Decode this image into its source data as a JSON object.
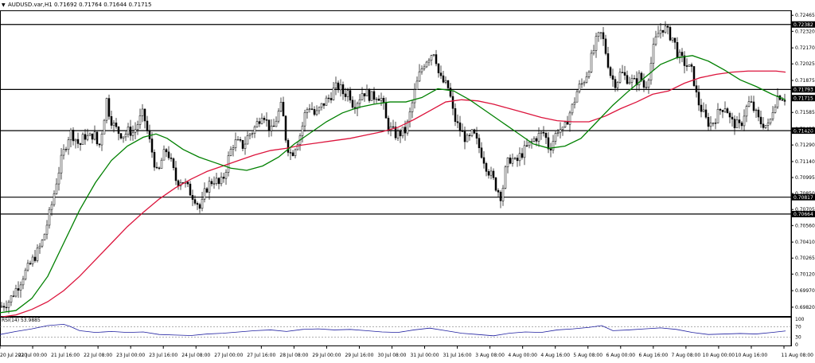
{
  "header": {
    "symbol_text": "AUDUSD.var,H1  0.71692 0.71764 0.71644 0.71715"
  },
  "rsi_label": "RSI(14) 53.9885",
  "chart_data": {
    "type": "candlestick",
    "symbol": "AUDUSD.var",
    "timeframe": "H1",
    "ohlc_header": {
      "open": 0.71692,
      "high": 0.71764,
      "low": 0.71644,
      "close": 0.71715
    },
    "y_range": [
      0.6974,
      0.7251
    ],
    "y_ticks": [
      "0.72465",
      "0.72320",
      "0.72170",
      "0.72025",
      "0.71875",
      "0.71585",
      "0.71435",
      "0.71290",
      "0.71140",
      "0.70995",
      "0.70850",
      "0.70705",
      "0.70560",
      "0.70410",
      "0.70265",
      "0.70120",
      "0.69970",
      "0.69820"
    ],
    "x_labels": [
      "20 Jul 2020",
      "21 Jul 00:00",
      "21 Jul 16:00",
      "22 Jul 08:00",
      "23 Jul 00:00",
      "23 Jul 16:00",
      "24 Jul 08:00",
      "27 Jul 00:00",
      "27 Jul 16:00",
      "28 Jul 08:00",
      "29 Jul 00:00",
      "29 Jul 16:00",
      "30 Jul 08:00",
      "31 Jul 00:00",
      "31 Jul 16:00",
      "3 Aug 08:00",
      "4 Aug 00:00",
      "4 Aug 16:00",
      "5 Aug 08:00",
      "6 Aug 00:00",
      "6 Aug 16:00",
      "7 Aug 08:00",
      "10 Aug 00:00",
      "10 Aug 16:00",
      "11 Aug 08:00"
    ],
    "horizontal_levels": [
      {
        "value": 0.72382,
        "label": "0.72382"
      },
      {
        "value": 0.71793,
        "label": "0.71793"
      },
      {
        "value": 0.7142,
        "label": "0.71420"
      },
      {
        "value": 0.70817,
        "label": "0.70817"
      },
      {
        "value": 0.70664,
        "label": "0.70664"
      }
    ],
    "current_price": {
      "value": 0.71715,
      "label": "0.71715"
    },
    "close_path": [
      [
        0,
        0.6982
      ],
      [
        6,
        0.6985
      ],
      [
        12,
        0.6988
      ],
      [
        18,
        0.6996
      ],
      [
        24,
        0.7003
      ],
      [
        30,
        0.7012
      ],
      [
        36,
        0.7018
      ],
      [
        42,
        0.7026
      ],
      [
        48,
        0.7033
      ],
      [
        54,
        0.7043
      ],
      [
        60,
        0.706
      ],
      [
        66,
        0.7078
      ],
      [
        72,
        0.71
      ],
      [
        78,
        0.7118
      ],
      [
        84,
        0.7132
      ],
      [
        88,
        0.7141
      ],
      [
        94,
        0.7136
      ],
      [
        100,
        0.7128
      ],
      [
        106,
        0.7138
      ],
      [
        112,
        0.7135
      ],
      [
        118,
        0.714
      ],
      [
        124,
        0.7125
      ],
      [
        130,
        0.715
      ],
      [
        134,
        0.717
      ],
      [
        138,
        0.7155
      ],
      [
        144,
        0.7145
      ],
      [
        150,
        0.714
      ],
      [
        156,
        0.7138
      ],
      [
        162,
        0.7142
      ],
      [
        168,
        0.714
      ],
      [
        174,
        0.715
      ],
      [
        180,
        0.7158
      ],
      [
        186,
        0.7138
      ],
      [
        192,
        0.712
      ],
      [
        198,
        0.71
      ],
      [
        204,
        0.7118
      ],
      [
        210,
        0.7125
      ],
      [
        216,
        0.711
      ],
      [
        222,
        0.7095
      ],
      [
        228,
        0.7098
      ],
      [
        234,
        0.7092
      ],
      [
        240,
        0.7085
      ],
      [
        246,
        0.708
      ],
      [
        252,
        0.707
      ],
      [
        258,
        0.7088
      ],
      [
        264,
        0.7095
      ],
      [
        270,
        0.7098
      ],
      [
        276,
        0.7092
      ],
      [
        282,
        0.7102
      ],
      [
        288,
        0.712
      ],
      [
        294,
        0.7132
      ],
      [
        300,
        0.713
      ],
      [
        306,
        0.7128
      ],
      [
        312,
        0.7138
      ],
      [
        318,
        0.7142
      ],
      [
        324,
        0.715
      ],
      [
        330,
        0.716
      ],
      [
        336,
        0.7148
      ],
      [
        342,
        0.714
      ],
      [
        348,
        0.7155
      ],
      [
        354,
        0.7165
      ],
      [
        360,
        0.713
      ],
      [
        366,
        0.712
      ],
      [
        372,
        0.713
      ],
      [
        378,
        0.714
      ],
      [
        384,
        0.716
      ],
      [
        390,
        0.7165
      ],
      [
        396,
        0.7155
      ],
      [
        402,
        0.7162
      ],
      [
        408,
        0.7168
      ],
      [
        414,
        0.7172
      ],
      [
        420,
        0.718
      ],
      [
        426,
        0.7182
      ],
      [
        432,
        0.7175
      ],
      [
        438,
        0.7178
      ],
      [
        444,
        0.7165
      ],
      [
        450,
        0.717
      ],
      [
        456,
        0.7178
      ],
      [
        462,
        0.7175
      ],
      [
        468,
        0.7172
      ],
      [
        474,
        0.7175
      ],
      [
        480,
        0.717
      ],
      [
        486,
        0.7148
      ],
      [
        492,
        0.7142
      ],
      [
        498,
        0.7138
      ],
      [
        504,
        0.714
      ],
      [
        510,
        0.7142
      ],
      [
        516,
        0.716
      ],
      [
        522,
        0.718
      ],
      [
        528,
        0.7195
      ],
      [
        534,
        0.7205
      ],
      [
        540,
        0.721
      ],
      [
        546,
        0.7215
      ],
      [
        552,
        0.719
      ],
      [
        558,
        0.7185
      ],
      [
        564,
        0.718
      ],
      [
        570,
        0.7155
      ],
      [
        576,
        0.7145
      ],
      [
        582,
        0.7138
      ],
      [
        588,
        0.7132
      ],
      [
        594,
        0.714
      ],
      [
        600,
        0.713
      ],
      [
        606,
        0.712
      ],
      [
        612,
        0.7108
      ],
      [
        618,
        0.71
      ],
      [
        624,
        0.709
      ],
      [
        630,
        0.7082
      ],
      [
        636,
        0.711
      ],
      [
        642,
        0.7118
      ],
      [
        648,
        0.7112
      ],
      [
        654,
        0.712
      ],
      [
        660,
        0.7125
      ],
      [
        666,
        0.713
      ],
      [
        672,
        0.7135
      ],
      [
        678,
        0.7138
      ],
      [
        684,
        0.714
      ],
      [
        690,
        0.7125
      ],
      [
        696,
        0.7135
      ],
      [
        702,
        0.7145
      ],
      [
        708,
        0.714
      ],
      [
        714,
        0.7155
      ],
      [
        720,
        0.7165
      ],
      [
        726,
        0.718
      ],
      [
        732,
        0.7185
      ],
      [
        738,
        0.7195
      ],
      [
        744,
        0.721
      ],
      [
        750,
        0.7225
      ],
      [
        756,
        0.723
      ],
      [
        762,
        0.721
      ],
      [
        768,
        0.719
      ],
      [
        774,
        0.7185
      ],
      [
        780,
        0.7195
      ],
      [
        786,
        0.719
      ],
      [
        792,
        0.7188
      ],
      [
        798,
        0.7185
      ],
      [
        804,
        0.7192
      ],
      [
        810,
        0.718
      ],
      [
        816,
        0.7195
      ],
      [
        822,
        0.722
      ],
      [
        828,
        0.7232
      ],
      [
        834,
        0.7236
      ],
      [
        840,
        0.723
      ],
      [
        846,
        0.7225
      ],
      [
        852,
        0.721
      ],
      [
        858,
        0.7205
      ],
      [
        864,
        0.72
      ],
      [
        870,
        0.7195
      ],
      [
        876,
        0.717
      ],
      [
        882,
        0.716
      ],
      [
        888,
        0.715
      ],
      [
        894,
        0.7148
      ],
      [
        900,
        0.7155
      ],
      [
        906,
        0.7162
      ],
      [
        912,
        0.7165
      ],
      [
        918,
        0.715
      ],
      [
        924,
        0.7148
      ],
      [
        930,
        0.7145
      ],
      [
        936,
        0.716
      ],
      [
        942,
        0.7168
      ],
      [
        948,
        0.716
      ],
      [
        954,
        0.715
      ],
      [
        960,
        0.7148
      ],
      [
        966,
        0.7145
      ],
      [
        972,
        0.7165
      ],
      [
        978,
        0.7175
      ],
      [
        984,
        0.7172
      ],
      [
        987,
        0.71715
      ]
    ],
    "ma_fast": {
      "color": "#008000",
      "points": [
        [
          0,
          0.6977
        ],
        [
          20,
          0.6979
        ],
        [
          40,
          0.699
        ],
        [
          60,
          0.701
        ],
        [
          80,
          0.704
        ],
        [
          100,
          0.707
        ],
        [
          120,
          0.7095
        ],
        [
          140,
          0.7115
        ],
        [
          160,
          0.7128
        ],
        [
          180,
          0.7136
        ],
        [
          196,
          0.7139
        ],
        [
          210,
          0.7135
        ],
        [
          230,
          0.7125
        ],
        [
          250,
          0.7118
        ],
        [
          270,
          0.7113
        ],
        [
          290,
          0.7108
        ],
        [
          310,
          0.7106
        ],
        [
          330,
          0.711
        ],
        [
          350,
          0.7118
        ],
        [
          370,
          0.713
        ],
        [
          390,
          0.714
        ],
        [
          410,
          0.715
        ],
        [
          430,
          0.7158
        ],
        [
          450,
          0.7163
        ],
        [
          470,
          0.7166
        ],
        [
          490,
          0.7168
        ],
        [
          510,
          0.7168
        ],
        [
          530,
          0.7172
        ],
        [
          550,
          0.718
        ],
        [
          570,
          0.7178
        ],
        [
          590,
          0.717
        ],
        [
          610,
          0.716
        ],
        [
          630,
          0.715
        ],
        [
          650,
          0.714
        ],
        [
          670,
          0.713
        ],
        [
          690,
          0.7126
        ],
        [
          710,
          0.7128
        ],
        [
          730,
          0.7135
        ],
        [
          750,
          0.715
        ],
        [
          770,
          0.7165
        ],
        [
          790,
          0.7178
        ],
        [
          810,
          0.719
        ],
        [
          830,
          0.7202
        ],
        [
          850,
          0.7208
        ],
        [
          870,
          0.721
        ],
        [
          890,
          0.7205
        ],
        [
          910,
          0.7197
        ],
        [
          930,
          0.7188
        ],
        [
          950,
          0.7182
        ],
        [
          970,
          0.7175
        ],
        [
          987,
          0.717
        ]
      ]
    },
    "ma_slow": {
      "color": "#dc143c",
      "points": [
        [
          0,
          0.6973
        ],
        [
          20,
          0.6975
        ],
        [
          40,
          0.698
        ],
        [
          60,
          0.6987
        ],
        [
          80,
          0.6997
        ],
        [
          100,
          0.701
        ],
        [
          120,
          0.7025
        ],
        [
          140,
          0.704
        ],
        [
          160,
          0.7055
        ],
        [
          180,
          0.7068
        ],
        [
          200,
          0.708
        ],
        [
          220,
          0.709
        ],
        [
          240,
          0.7098
        ],
        [
          260,
          0.7105
        ],
        [
          280,
          0.711
        ],
        [
          300,
          0.7115
        ],
        [
          320,
          0.712
        ],
        [
          340,
          0.7124
        ],
        [
          360,
          0.7126
        ],
        [
          380,
          0.7129
        ],
        [
          400,
          0.7131
        ],
        [
          420,
          0.7133
        ],
        [
          440,
          0.7135
        ],
        [
          460,
          0.7138
        ],
        [
          480,
          0.7141
        ],
        [
          500,
          0.7145
        ],
        [
          520,
          0.7152
        ],
        [
          540,
          0.716
        ],
        [
          560,
          0.7168
        ],
        [
          580,
          0.717
        ],
        [
          600,
          0.7169
        ],
        [
          620,
          0.7166
        ],
        [
          640,
          0.7162
        ],
        [
          660,
          0.7158
        ],
        [
          680,
          0.7154
        ],
        [
          700,
          0.7151
        ],
        [
          720,
          0.715
        ],
        [
          740,
          0.715
        ],
        [
          760,
          0.7155
        ],
        [
          780,
          0.7162
        ],
        [
          800,
          0.7168
        ],
        [
          820,
          0.7175
        ],
        [
          840,
          0.7178
        ],
        [
          860,
          0.7185
        ],
        [
          880,
          0.719
        ],
        [
          900,
          0.7193
        ],
        [
          920,
          0.7195
        ],
        [
          940,
          0.7196
        ],
        [
          960,
          0.7196
        ],
        [
          975,
          0.7196
        ],
        [
          987,
          0.7195
        ]
      ]
    },
    "rsi": {
      "period": 14,
      "value": 53.9885,
      "range": [
        0,
        100
      ],
      "levels": [
        70,
        30
      ],
      "y_ticks": [
        "100",
        "70",
        "30",
        "0"
      ],
      "points": [
        [
          0,
          40
        ],
        [
          20,
          52
        ],
        [
          40,
          62
        ],
        [
          60,
          75
        ],
        [
          80,
          80
        ],
        [
          88,
          72
        ],
        [
          100,
          55
        ],
        [
          120,
          48
        ],
        [
          140,
          52
        ],
        [
          160,
          48
        ],
        [
          180,
          50
        ],
        [
          200,
          40
        ],
        [
          220,
          38
        ],
        [
          240,
          36
        ],
        [
          260,
          42
        ],
        [
          280,
          45
        ],
        [
          300,
          50
        ],
        [
          320,
          55
        ],
        [
          340,
          58
        ],
        [
          360,
          52
        ],
        [
          380,
          60
        ],
        [
          400,
          62
        ],
        [
          420,
          58
        ],
        [
          440,
          60
        ],
        [
          460,
          55
        ],
        [
          480,
          50
        ],
        [
          500,
          48
        ],
        [
          520,
          58
        ],
        [
          540,
          65
        ],
        [
          560,
          55
        ],
        [
          580,
          45
        ],
        [
          600,
          40
        ],
        [
          620,
          35
        ],
        [
          640,
          45
        ],
        [
          660,
          50
        ],
        [
          680,
          48
        ],
        [
          700,
          58
        ],
        [
          720,
          62
        ],
        [
          740,
          68
        ],
        [
          756,
          75
        ],
        [
          770,
          55
        ],
        [
          790,
          58
        ],
        [
          810,
          62
        ],
        [
          830,
          66
        ],
        [
          850,
          60
        ],
        [
          870,
          48
        ],
        [
          890,
          40
        ],
        [
          910,
          42
        ],
        [
          930,
          44
        ],
        [
          950,
          42
        ],
        [
          970,
          48
        ],
        [
          987,
          54
        ]
      ]
    }
  }
}
